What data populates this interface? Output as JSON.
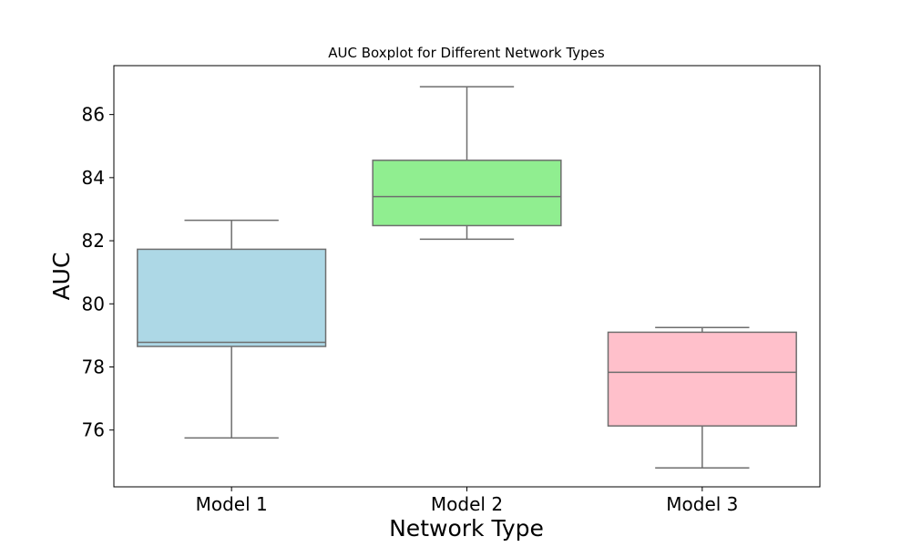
{
  "chart_data": {
    "type": "boxplot",
    "title": "AUC Boxplot for Different Network Types",
    "xlabel": "Network Type",
    "ylabel": "AUC",
    "ylim": [
      74.2,
      87.55
    ],
    "yticks": [
      76,
      78,
      80,
      82,
      84,
      86
    ],
    "ytick_labels": [
      "76",
      "78",
      "80",
      "82",
      "84",
      "86"
    ],
    "categories": [
      "Model 1",
      "Model 2",
      "Model 3"
    ],
    "boxes": [
      {
        "category": "Model 1",
        "whisker_low": 75.75,
        "q1": 78.65,
        "median": 78.78,
        "q3": 81.73,
        "whisker_high": 82.65,
        "color": "#add8e6"
      },
      {
        "category": "Model 2",
        "whisker_low": 82.05,
        "q1": 82.48,
        "median": 83.4,
        "q3": 84.55,
        "whisker_high": 86.88,
        "color": "#90ee90"
      },
      {
        "category": "Model 3",
        "whisker_low": 74.8,
        "q1": 76.13,
        "median": 77.83,
        "q3": 79.1,
        "whisker_high": 79.25,
        "color": "#ffc0cb"
      }
    ],
    "grid": false,
    "legend": "none",
    "line_color": "#6e6e6e"
  }
}
